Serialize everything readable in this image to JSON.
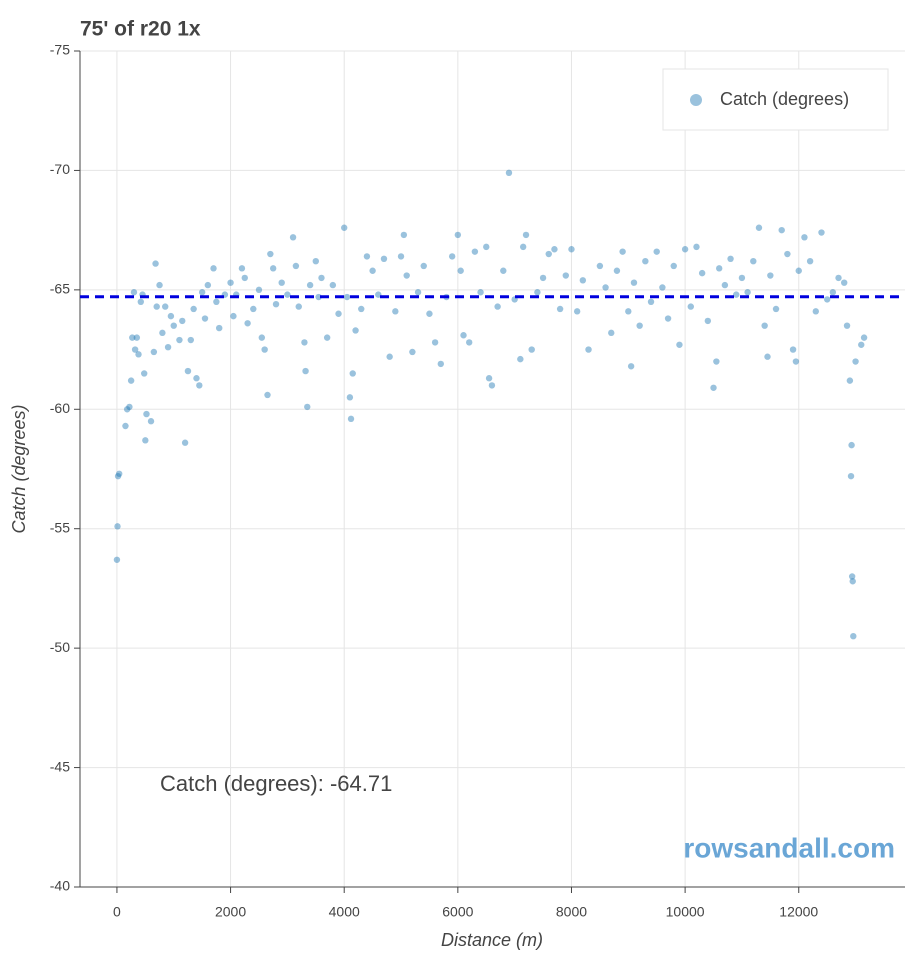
{
  "chart_data": {
    "type": "scatter",
    "title": "75' of r20 1x",
    "xlabel": "Distance (m)",
    "ylabel": "Catch (degrees)",
    "series": [
      {
        "name": "Catch (degrees)",
        "color": "#1f77b4",
        "x": [
          0,
          10,
          20,
          40,
          150,
          180,
          220,
          250,
          270,
          300,
          320,
          350,
          380,
          420,
          450,
          480,
          500,
          520,
          600,
          650,
          680,
          700,
          750,
          800,
          850,
          900,
          950,
          1000,
          1100,
          1150,
          1200,
          1250,
          1300,
          1350,
          1400,
          1450,
          1500,
          1550,
          1600,
          1700,
          1750,
          1800,
          1900,
          2000,
          2050,
          2100,
          2200,
          2250,
          2300,
          2400,
          2500,
          2550,
          2600,
          2650,
          2700,
          2750,
          2800,
          2900,
          3000,
          3100,
          3150,
          3200,
          3300,
          3320,
          3350,
          3400,
          3500,
          3550,
          3600,
          3700,
          3800,
          3900,
          4000,
          4050,
          4100,
          4120,
          4150,
          4200,
          4300,
          4400,
          4500,
          4600,
          4700,
          4800,
          4900,
          5000,
          5050,
          5100,
          5200,
          5300,
          5400,
          5500,
          5600,
          5700,
          5800,
          5900,
          6000,
          6050,
          6100,
          6200,
          6300,
          6400,
          6500,
          6550,
          6600,
          6700,
          6800,
          6900,
          7000,
          7100,
          7150,
          7200,
          7300,
          7400,
          7500,
          7600,
          7700,
          7800,
          7900,
          8000,
          8100,
          8200,
          8300,
          8500,
          8600,
          8700,
          8800,
          8900,
          9000,
          9050,
          9100,
          9200,
          9300,
          9400,
          9500,
          9600,
          9700,
          9800,
          9900,
          10000,
          10100,
          10200,
          10300,
          10400,
          10500,
          10550,
          10600,
          10700,
          10800,
          10900,
          11000,
          11100,
          11200,
          11300,
          11400,
          11450,
          11500,
          11600,
          11700,
          11800,
          11900,
          11950,
          12000,
          12100,
          12200,
          12300,
          12400,
          12500,
          12600,
          12700,
          12800,
          12850,
          12900,
          12920,
          12930,
          12940,
          12950,
          12960,
          13000,
          13100,
          13150
        ],
        "values": [
          -53.7,
          -55.1,
          -57.2,
          -57.3,
          -59.3,
          -60,
          -60.1,
          -61.2,
          -63,
          -64.9,
          -62.5,
          -63,
          -62.3,
          -64.5,
          -64.8,
          -61.5,
          -58.7,
          -59.8,
          -59.5,
          -62.4,
          -66.1,
          -64.3,
          -65.2,
          -63.2,
          -64.3,
          -62.6,
          -63.9,
          -63.5,
          -62.9,
          -63.7,
          -58.6,
          -61.6,
          -62.9,
          -64.2,
          -61.3,
          -61,
          -64.9,
          -63.8,
          -65.2,
          -65.9,
          -64.5,
          -63.4,
          -64.8,
          -65.3,
          -63.9,
          -64.8,
          -65.9,
          -65.5,
          -63.6,
          -64.2,
          -65,
          -63,
          -62.5,
          -60.6,
          -66.5,
          -65.9,
          -64.4,
          -65.3,
          -64.8,
          -67.2,
          -66,
          -64.3,
          -62.8,
          -61.6,
          -60.1,
          -65.2,
          -66.2,
          -64.7,
          -65.5,
          -63,
          -65.2,
          -64,
          -67.6,
          -64.7,
          -60.5,
          -59.6,
          -61.5,
          -63.3,
          -64.2,
          -66.4,
          -65.8,
          -64.8,
          -66.3,
          -62.2,
          -64.1,
          -66.4,
          -67.3,
          -65.6,
          -62.4,
          -64.9,
          -66,
          -64,
          -62.8,
          -61.9,
          -64.7,
          -66.4,
          -67.3,
          -65.8,
          -63.1,
          -62.8,
          -66.6,
          -64.9,
          -66.8,
          -61.3,
          -61,
          -64.3,
          -65.8,
          -69.9,
          -64.6,
          -62.1,
          -66.8,
          -67.3,
          -62.5,
          -64.9,
          -65.5,
          -66.5,
          -66.7,
          -64.2,
          -65.6,
          -66.7,
          -64.1,
          -65.4,
          -62.5,
          -66,
          -65.1,
          -63.2,
          -65.8,
          -66.6,
          -64.1,
          -61.8,
          -65.3,
          -63.5,
          -66.2,
          -64.5,
          -66.6,
          -65.1,
          -63.8,
          -66,
          -62.7,
          -66.7,
          -64.3,
          -66.8,
          -65.7,
          -63.7,
          -60.9,
          -62,
          -65.9,
          -65.2,
          -66.3,
          -64.8,
          -65.5,
          -64.9,
          -66.2,
          -67.6,
          -63.5,
          -62.2,
          -65.6,
          -64.2,
          -67.5,
          -66.5,
          -62.5,
          -62,
          -65.8,
          -67.2,
          -66.2,
          -64.1,
          -67.4,
          -64.6,
          -64.9,
          -65.5,
          -65.3,
          -63.5,
          -61.2,
          -57.2,
          -58.5,
          -53,
          -52.8,
          -50.5,
          -62,
          -62.7,
          -63
        ]
      }
    ],
    "mean_line": {
      "value": -64.71,
      "color": "#0000dd"
    },
    "annotation": "Catch (degrees): -64.71",
    "watermark": "rowsandall.com",
    "xlim": [
      -650,
      13870
    ],
    "xticks": [
      0,
      2000,
      4000,
      6000,
      8000,
      10000,
      12000
    ],
    "ylim": [
      -75,
      -40
    ],
    "yticks": [
      -75,
      -70,
      -65,
      -60,
      -55,
      -50,
      -45,
      -40
    ],
    "y_inverted": true,
    "grid": true,
    "legend": "top-right"
  }
}
